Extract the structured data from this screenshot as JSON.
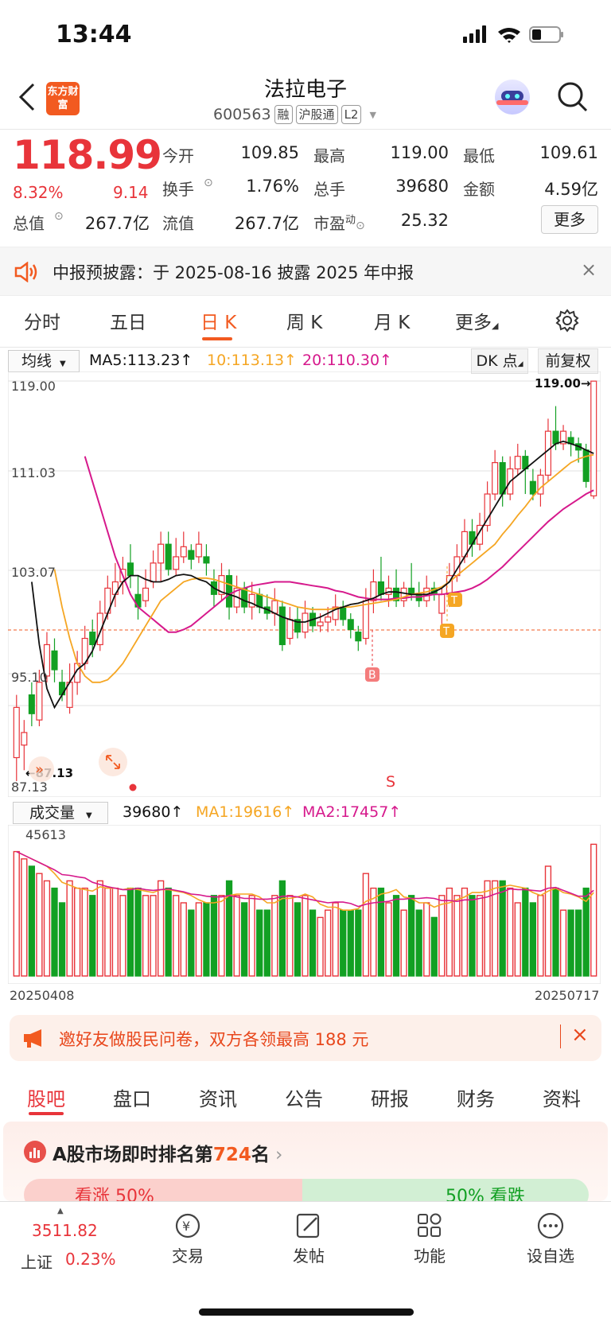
{
  "status": {
    "time": "13:44"
  },
  "header": {
    "logo_text": "东方财富",
    "title": "法拉电子",
    "code": "600563",
    "tags": [
      "融",
      "沪股通",
      "L2"
    ]
  },
  "quote": {
    "price": "118.99",
    "change_pct": "8.32%",
    "change": "9.14",
    "open_label": "今开",
    "open": "109.85",
    "high_label": "最高",
    "high": "119.00",
    "low_label": "最低",
    "low": "109.61",
    "turnover_label": "换手",
    "turnover": "1.76%",
    "volume_label": "总手",
    "volume": "39680",
    "amount_label": "金额",
    "amount": "4.59亿",
    "mktcap_label": "总值",
    "mktcap": "267.7亿",
    "float_label": "流值",
    "float": "267.7亿",
    "pe_label": "市盈",
    "pe_sup": "动",
    "pe": "25.32",
    "more_label": "更多"
  },
  "notice": {
    "text": "中报预披露：于 2025-08-16 披露 2025 年中报"
  },
  "chart_tabs": [
    "分时",
    "五日",
    "日 K",
    "周 K",
    "月 K",
    "更多"
  ],
  "active_tab": "日 K",
  "chart_toolbar": {
    "ma_select": "均线",
    "ma5": "MA5:113.23↑",
    "ma10": "10:113.13↑",
    "ma20": "20:110.30↑",
    "dk": "DK 点",
    "adjust": "前复权"
  },
  "axis": {
    "y_labels": [
      "119.00",
      "111.03",
      "103.07",
      "95.10",
      "87.13"
    ],
    "high_mark": "119.00→",
    "low_mark": "←87.13",
    "signal_b": "B",
    "signal_s": "S",
    "signal_t": "T",
    "date_start": "20250408",
    "date_end": "20250717"
  },
  "volume_toolbar": {
    "select": "成交量",
    "volume": "39680↑",
    "ma1": "MA1:19616↑",
    "ma2": "MA2:17457↑",
    "max_label": "45613"
  },
  "colors": {
    "up": "#e8343a",
    "down": "#12a023",
    "ma5": "#111111",
    "ma10": "#f5a623",
    "ma20": "#d6198c",
    "accent": "#f25a20"
  },
  "chart_data": {
    "type": "candlestick",
    "ylim": [
      87.13,
      119.0
    ],
    "candles": [
      {
        "o": 89,
        "c": 93,
        "h": 94,
        "l": 87.13
      },
      {
        "o": 90,
        "c": 91,
        "h": 92,
        "l": 88
      },
      {
        "o": 94,
        "c": 92.5,
        "h": 95,
        "l": 91.5
      },
      {
        "o": 92,
        "c": 95,
        "h": 96,
        "l": 91.5
      },
      {
        "o": 95.5,
        "c": 98,
        "h": 99,
        "l": 95
      },
      {
        "o": 97.5,
        "c": 96,
        "h": 98.5,
        "l": 95
      },
      {
        "o": 95,
        "c": 94,
        "h": 96,
        "l": 93.5
      },
      {
        "o": 93,
        "c": 95,
        "h": 96.5,
        "l": 92.5
      },
      {
        "o": 95,
        "c": 96.5,
        "h": 97.5,
        "l": 94
      },
      {
        "o": 96.5,
        "c": 98.5,
        "h": 99.5,
        "l": 96
      },
      {
        "o": 99,
        "c": 98,
        "h": 100,
        "l": 97
      },
      {
        "o": 98,
        "c": 100.5,
        "h": 101.5,
        "l": 97.5
      },
      {
        "o": 100.5,
        "c": 102.5,
        "h": 103.5,
        "l": 100
      },
      {
        "o": 102,
        "c": 103,
        "h": 104.5,
        "l": 101
      },
      {
        "o": 103,
        "c": 104,
        "h": 105,
        "l": 102
      },
      {
        "o": 104.5,
        "c": 103.5,
        "h": 106,
        "l": 102.5
      },
      {
        "o": 102,
        "c": 101,
        "h": 103.5,
        "l": 100
      },
      {
        "o": 101.5,
        "c": 102.5,
        "h": 104,
        "l": 101
      },
      {
        "o": 103,
        "c": 104.5,
        "h": 105.5,
        "l": 102.5
      },
      {
        "o": 104.5,
        "c": 106,
        "h": 107,
        "l": 103
      },
      {
        "o": 106,
        "c": 104,
        "h": 107,
        "l": 103.5
      },
      {
        "o": 104,
        "c": 105,
        "h": 106.5,
        "l": 103.5
      },
      {
        "o": 105,
        "c": 105.8,
        "h": 107,
        "l": 104.5
      },
      {
        "o": 105.5,
        "c": 104.8,
        "h": 106,
        "l": 104
      },
      {
        "o": 105,
        "c": 106,
        "h": 107,
        "l": 104.5
      },
      {
        "o": 105,
        "c": 104.5,
        "h": 106,
        "l": 103.5
      },
      {
        "o": 103,
        "c": 102,
        "h": 104,
        "l": 101
      },
      {
        "o": 102,
        "c": 103.5,
        "h": 104.5,
        "l": 101.5
      },
      {
        "o": 103.5,
        "c": 101,
        "h": 104,
        "l": 100
      },
      {
        "o": 101,
        "c": 102.5,
        "h": 103.5,
        "l": 100.5
      },
      {
        "o": 102.5,
        "c": 101,
        "h": 103,
        "l": 100.5
      },
      {
        "o": 101,
        "c": 102,
        "h": 103,
        "l": 100
      },
      {
        "o": 102,
        "c": 101,
        "h": 102.5,
        "l": 100.5
      },
      {
        "o": 101,
        "c": 100.5,
        "h": 102,
        "l": 100
      },
      {
        "o": 100.5,
        "c": 101.5,
        "h": 102.5,
        "l": 99.5
      },
      {
        "o": 101,
        "c": 98,
        "h": 101.5,
        "l": 97.5
      },
      {
        "o": 98.5,
        "c": 100,
        "h": 101,
        "l": 98
      },
      {
        "o": 100,
        "c": 99,
        "h": 101,
        "l": 98.5
      },
      {
        "o": 99,
        "c": 100.5,
        "h": 101.5,
        "l": 98.5
      },
      {
        "o": 100.5,
        "c": 99.5,
        "h": 101,
        "l": 99
      },
      {
        "o": 99.5,
        "c": 99.8,
        "h": 100.5,
        "l": 99
      },
      {
        "o": 99.8,
        "c": 100.2,
        "h": 101,
        "l": 99
      },
      {
        "o": 100,
        "c": 101,
        "h": 102,
        "l": 99.5
      },
      {
        "o": 101,
        "c": 100,
        "h": 101.5,
        "l": 99.5
      },
      {
        "o": 100,
        "c": 99.2,
        "h": 100.5,
        "l": 98.5
      },
      {
        "o": 99,
        "c": 98.3,
        "h": 99.5,
        "l": 97.5
      },
      {
        "o": 98.5,
        "c": 101.5,
        "h": 102.5,
        "l": 98
      },
      {
        "o": 101.5,
        "c": 103,
        "h": 104,
        "l": 100.5
      },
      {
        "o": 103,
        "c": 102,
        "h": 105,
        "l": 101.5
      },
      {
        "o": 102,
        "c": 102.5,
        "h": 103.5,
        "l": 101
      },
      {
        "o": 102.5,
        "c": 101.5,
        "h": 104,
        "l": 101
      },
      {
        "o": 101.5,
        "c": 102.5,
        "h": 103,
        "l": 101
      },
      {
        "o": 102.5,
        "c": 102,
        "h": 104.5,
        "l": 101.5
      },
      {
        "o": 102,
        "c": 101.5,
        "h": 103,
        "l": 101
      },
      {
        "o": 101.5,
        "c": 102.5,
        "h": 103.5,
        "l": 101
      },
      {
        "o": 102.5,
        "c": 102,
        "h": 103,
        "l": 101.5
      },
      {
        "o": 100.5,
        "c": 102,
        "h": 102.5,
        "l": 99.5
      },
      {
        "o": 102,
        "c": 103.5,
        "h": 104.5,
        "l": 101
      },
      {
        "o": 103.5,
        "c": 105,
        "h": 106,
        "l": 103
      },
      {
        "o": 105,
        "c": 107,
        "h": 108,
        "l": 104.5
      },
      {
        "o": 107,
        "c": 106,
        "h": 108,
        "l": 105
      },
      {
        "o": 106,
        "c": 107.5,
        "h": 108.5,
        "l": 105.5
      },
      {
        "o": 107.5,
        "c": 110,
        "h": 111,
        "l": 107
      },
      {
        "o": 110,
        "c": 112.5,
        "h": 113.5,
        "l": 109.5
      },
      {
        "o": 112.5,
        "c": 110,
        "h": 113,
        "l": 109
      },
      {
        "o": 110,
        "c": 112,
        "h": 113,
        "l": 109.5
      },
      {
        "o": 112,
        "c": 113,
        "h": 114,
        "l": 111.5
      },
      {
        "o": 113,
        "c": 112,
        "h": 113.5,
        "l": 110
      },
      {
        "o": 111,
        "c": 110,
        "h": 112,
        "l": 109.5
      },
      {
        "o": 110,
        "c": 111.5,
        "h": 112,
        "l": 109
      },
      {
        "o": 111.5,
        "c": 115,
        "h": 116,
        "l": 111
      },
      {
        "o": 115,
        "c": 114,
        "h": 117,
        "l": 113.5
      },
      {
        "o": 114,
        "c": 115,
        "h": 115.5,
        "l": 113.5
      },
      {
        "o": 114.5,
        "c": 114,
        "h": 115,
        "l": 113
      },
      {
        "o": 114,
        "c": 113.5,
        "h": 114.5,
        "l": 112.5
      },
      {
        "o": 113.5,
        "c": 111,
        "h": 114,
        "l": 110.5
      },
      {
        "o": 109.85,
        "c": 118.99,
        "h": 119,
        "l": 109.61
      }
    ],
    "ma5": [
      103,
      98,
      94.5,
      93,
      94,
      95,
      96,
      96.5,
      97.5,
      99,
      100.5,
      102,
      103,
      103.5,
      103.5,
      103.2,
      103,
      103,
      103.2,
      103.5,
      103.6,
      103.5,
      103.2,
      103,
      102.5,
      102.2,
      102,
      101.8,
      101.5,
      101.3,
      101,
      100.8,
      100.5,
      100.2,
      100,
      99.8,
      99.8,
      100,
      100.2,
      100.5,
      100.8,
      101,
      101.2,
      101.3,
      101.5,
      101.7,
      102,
      102.2,
      102.2,
      102.1,
      102,
      102,
      102,
      102.2,
      102.5,
      103,
      104,
      105,
      106,
      107,
      108,
      109,
      110,
      111,
      111.5,
      112,
      112.5,
      113,
      113.5,
      114,
      114.2,
      114,
      113.8,
      113.5,
      113.23
    ],
    "ma10": [
      104,
      101,
      98.5,
      96.5,
      95.5,
      95,
      95,
      95.2,
      95.8,
      96.5,
      97.5,
      98.5,
      99.5,
      100.5,
      101.5,
      102,
      102.5,
      103,
      103.2,
      103.3,
      103.3,
      103.2,
      103,
      102.8,
      102.6,
      102.4,
      102.2,
      102,
      101.8,
      101.6,
      101.4,
      101.2,
      101,
      100.9,
      100.8,
      100.8,
      100.8,
      100.9,
      101,
      101,
      101.1,
      101.2,
      101.3,
      101.4,
      101.5,
      101.6,
      101.8,
      102,
      102.1,
      102.2,
      102.4,
      102.6,
      103,
      103.5,
      104,
      104.5,
      105,
      105.5,
      106,
      106.8,
      107.5,
      108.3,
      109,
      109.8,
      110.5,
      111,
      111.5,
      112,
      112.5,
      112.8,
      113,
      113.13
    ],
    "ma20": [
      113,
      111,
      109,
      107,
      105,
      103.5,
      102,
      101,
      100.5,
      100,
      99.5,
      99,
      99,
      99.2,
      99.5,
      100,
      100.5,
      101,
      101.5,
      102,
      102.3,
      102.5,
      102.7,
      102.8,
      102.9,
      103,
      103,
      103,
      102.9,
      102.8,
      102.7,
      102.6,
      102.5,
      102.3,
      102.2,
      102,
      101.8,
      101.7,
      101.6,
      101.6,
      101.6,
      101.7,
      101.7,
      101.8,
      101.8,
      101.9,
      102,
      102,
      102.1,
      102.2,
      102.3,
      102.5,
      102.8,
      103.2,
      103.7,
      104.2,
      104.8,
      105.4,
      106,
      106.6,
      107.2,
      107.8,
      108.3,
      108.8,
      109.2,
      109.6,
      110,
      110.3
    ]
  },
  "promo": {
    "text": "邀好友做股民问卷，双方各领最高 188 元"
  },
  "section_tabs": [
    "股吧",
    "盘口",
    "资讯",
    "公告",
    "研报",
    "财务",
    "资料"
  ],
  "active_section": "股吧",
  "ranking": {
    "prefix": "A股市场即时排名第",
    "rank": "724",
    "suffix": "名"
  },
  "sentiment": {
    "left": "看涨 50%",
    "right": "50% 看跌"
  },
  "bottom_bar": {
    "index_value": "3511.82",
    "index_name": "上证",
    "index_change": "0.23%",
    "items": [
      "交易",
      "发帖",
      "功能",
      "设自选"
    ]
  }
}
